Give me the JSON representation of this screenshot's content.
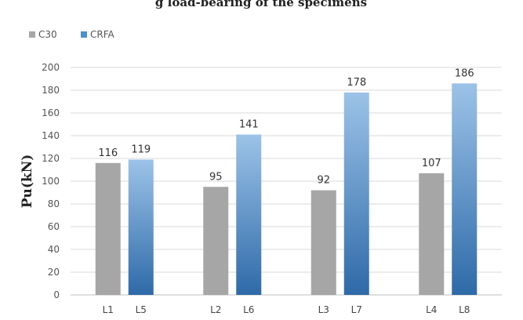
{
  "chart_data": {
    "type": "bar",
    "title": "g load-bearing of the specimens",
    "ylabel": "Pu(kN)",
    "xlabel": "",
    "ylim": [
      0,
      200
    ],
    "yticks": [
      0,
      20,
      40,
      60,
      80,
      100,
      120,
      140,
      160,
      180,
      200
    ],
    "legend_position": "top-left",
    "grid": true,
    "groups": [
      {
        "labels": [
          "L1",
          "L5"
        ]
      },
      {
        "labels": [
          "L2",
          "L6"
        ]
      },
      {
        "labels": [
          "L3",
          "L7"
        ]
      },
      {
        "labels": [
          "L4",
          "L8"
        ]
      }
    ],
    "series": [
      {
        "name": "C30",
        "color": "#a6a6a6",
        "values": [
          116,
          95,
          92,
          107
        ]
      },
      {
        "name": "CRFA",
        "color": "#4a8fd0",
        "color_top": "#9cc3e8",
        "color_bottom": "#2e6aa8",
        "values": [
          119,
          141,
          178,
          186
        ]
      }
    ]
  }
}
